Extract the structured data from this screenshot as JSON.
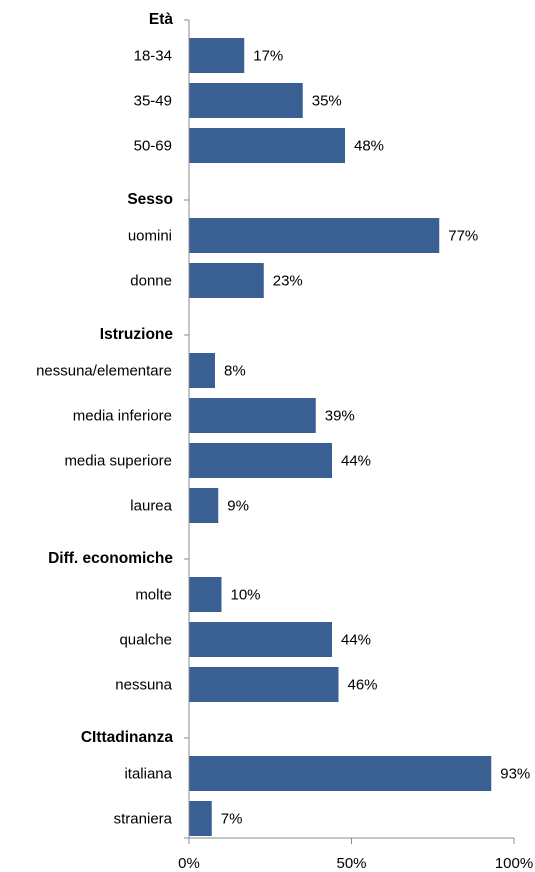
{
  "chart_data": {
    "type": "bar",
    "orientation": "horizontal",
    "xlim": [
      0,
      100
    ],
    "x_ticks": [
      "0%",
      "50%",
      "100%"
    ],
    "x_tick_values": [
      0,
      50,
      100
    ],
    "bar_color": "#3a5f93",
    "axis_color": "#8c8c8c",
    "value_suffix": "%",
    "groups": [
      {
        "title": "Età",
        "categories": [
          "18-34",
          "35-49",
          "50-69"
        ],
        "values": [
          17,
          35,
          48
        ]
      },
      {
        "title": "Sesso",
        "categories": [
          "uomini",
          "donne"
        ],
        "values": [
          77,
          23
        ]
      },
      {
        "title": "Istruzione",
        "categories": [
          "nessuna/elementare",
          "media inferiore",
          "media superiore",
          "laurea"
        ],
        "values": [
          8,
          39,
          44,
          9
        ]
      },
      {
        "title": "Diff. economiche",
        "categories": [
          "molte",
          "qualche",
          "nessuna"
        ],
        "values": [
          10,
          44,
          46
        ]
      },
      {
        "title": "CIttadinanza",
        "categories": [
          "italiana",
          "straniera"
        ],
        "values": [
          93,
          7
        ]
      }
    ]
  }
}
